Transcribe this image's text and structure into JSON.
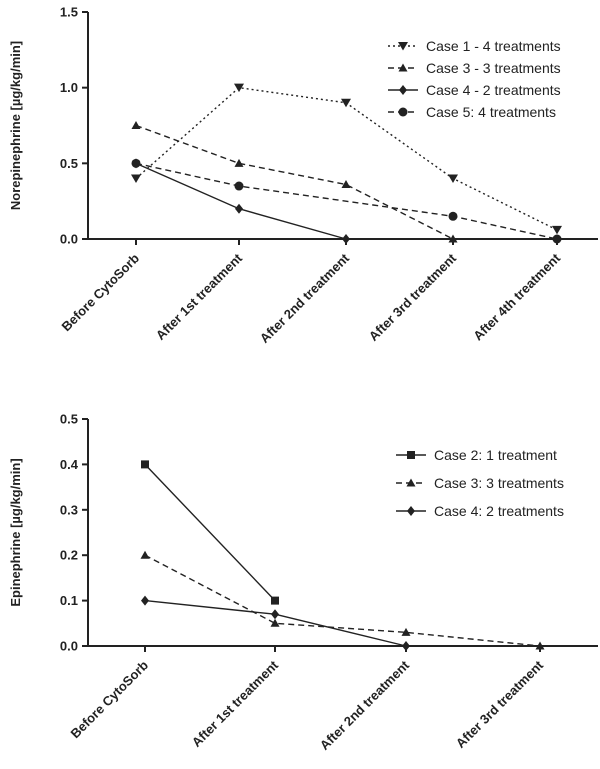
{
  "chart_data": [
    {
      "type": "line",
      "ylabel": "Norepinephrine [µg/kg/min]",
      "xlabel": "",
      "title": "",
      "ylim": [
        0,
        1.5
      ],
      "yticks": [
        "0.0",
        "0.5",
        "1.0",
        "1.5"
      ],
      "categories": [
        "Before CytoSorb",
        "After 1st treatment",
        "After 2nd treatment",
        "After 3rd treatment",
        "After 4th treatment"
      ],
      "legend_position": "top-right",
      "series": [
        {
          "name": "Case 1 - 4 treatments",
          "marker": "triangle-down",
          "dash": "dotted",
          "values": [
            0.4,
            1.0,
            0.9,
            0.4,
            0.06
          ]
        },
        {
          "name": "Case 3 - 3 treatments",
          "marker": "triangle-up",
          "dash": "dashed",
          "values": [
            0.75,
            0.5,
            0.36,
            0.0,
            null
          ]
        },
        {
          "name": "Case 4 - 2 treatments",
          "marker": "diamond",
          "dash": "solid",
          "values": [
            0.5,
            0.2,
            0.0,
            null,
            null
          ]
        },
        {
          "name": "Case 5: 4 treatments",
          "marker": "circle",
          "dash": "dashed",
          "values": [
            0.5,
            0.35,
            0.25,
            0.15,
            0.0
          ],
          "marker_mask": [
            true,
            true,
            false,
            true,
            true
          ]
        }
      ]
    },
    {
      "type": "line",
      "ylabel": "Epinephrine [µg/kg/min]",
      "xlabel": "",
      "title": "",
      "ylim": [
        0,
        0.5
      ],
      "yticks": [
        "0.0",
        "0.1",
        "0.2",
        "0.3",
        "0.4",
        "0.5"
      ],
      "categories": [
        "Before CytoSorb",
        "After 1st treatment",
        "After 2nd treatment",
        "After 3rd treatment"
      ],
      "legend_position": "top-right",
      "series": [
        {
          "name": "Case 2: 1 treatment",
          "marker": "square",
          "dash": "solid",
          "values": [
            0.4,
            0.1,
            null,
            null
          ]
        },
        {
          "name": "Case 3: 3 treatments",
          "marker": "triangle-up",
          "dash": "dashed",
          "values": [
            0.2,
            0.05,
            0.03,
            0.0
          ]
        },
        {
          "name": "Case 4: 2 treatments",
          "marker": "diamond",
          "dash": "solid",
          "values": [
            0.1,
            0.07,
            0.0,
            null
          ]
        }
      ]
    }
  ]
}
